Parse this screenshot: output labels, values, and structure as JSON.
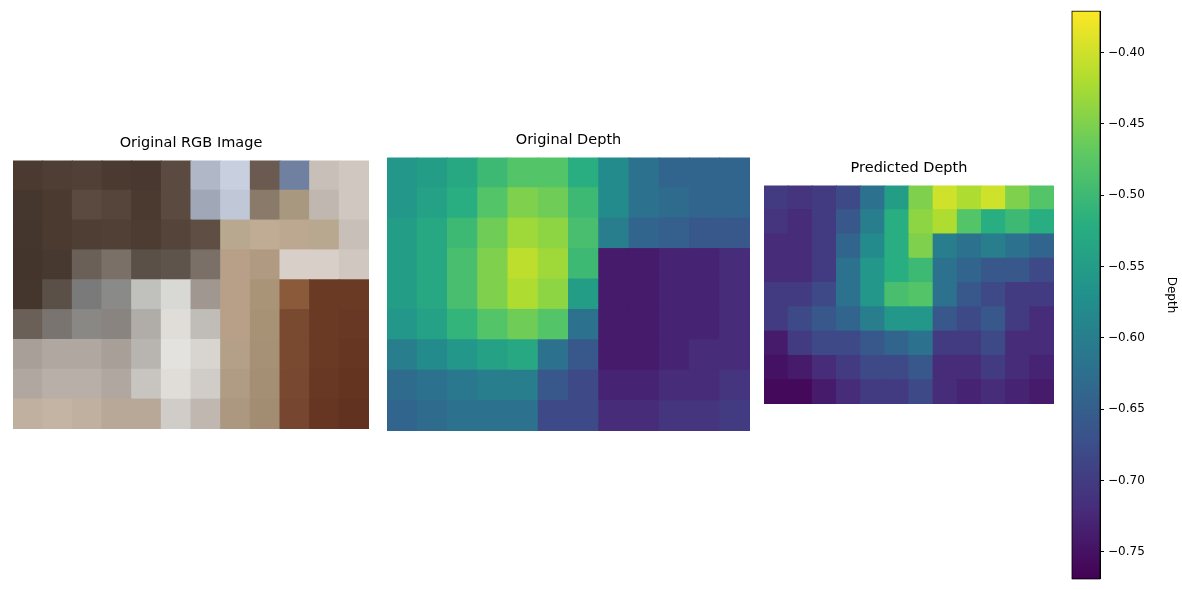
{
  "chart_data": [
    {
      "type": "image",
      "title": "Original RGB Image",
      "pixels": [
        [
          "#4a3a30",
          "#4e3e33",
          "#504035",
          "#4a3a30",
          "#483830",
          "#5a4a40",
          "#b0b8c8",
          "#c8d0e0",
          "#6a5a50",
          "#7080a0",
          "#c8c0b8",
          "#d0c8c0"
        ],
        [
          "#46372e",
          "#4a3a30",
          "#5a4a40",
          "#55453a",
          "#4a3a30",
          "#5a4a40",
          "#a0a8b8",
          "#c0c8d8",
          "#8a7a6a",
          "#a89880",
          "#c0b8b0",
          "#d0c8c0"
        ],
        [
          "#45362d",
          "#4a3a30",
          "#4e3e34",
          "#504035",
          "#4c3c32",
          "#54443a",
          "#5e4e44",
          "#b8a890",
          "#c0ac94",
          "#bca890",
          "#b8a890",
          "#c8c0b8"
        ],
        [
          "#44352c",
          "#483930",
          "#6a6058",
          "#7a7068",
          "#5a5048",
          "#5e544c",
          "#7a7068",
          "#b8a088",
          "#b09a82",
          "#d8d0c8",
          "#d8d0c8",
          "#d0c8c0"
        ],
        [
          "#45362d",
          "#5a5048",
          "#7a7a7a",
          "#8a8a88",
          "#c0c0bc",
          "#d8d8d4",
          "#a09890",
          "#b8a088",
          "#aa9478",
          "#8a5a3a",
          "#6a3a25",
          "#6a3a25"
        ],
        [
          "#6a6058",
          "#7a7470",
          "#8a8884",
          "#8a8480",
          "#b0aca8",
          "#e0ddd8",
          "#c0bcb8",
          "#b8a088",
          "#a89276",
          "#7a4a30",
          "#6a3a25",
          "#683824"
        ],
        [
          "#a8a098",
          "#b0a8a0",
          "#b0a8a0",
          "#a8a098",
          "#b8b4b0",
          "#e4e2de",
          "#d8d4d0",
          "#b4a088",
          "#a69076",
          "#7a4a30",
          "#6a3a25",
          "#663622"
        ],
        [
          "#b0a8a0",
          "#b8b0a8",
          "#b8b0a8",
          "#b0a8a0",
          "#c8c4c0",
          "#e0ddd8",
          "#d0ccc8",
          "#b09c84",
          "#a48e74",
          "#784830",
          "#683824",
          "#643420"
        ],
        [
          "#c0b0a0",
          "#c4b4a4",
          "#c0b0a0",
          "#b8a898",
          "#b8a898",
          "#d0ccc8",
          "#c0b8b0",
          "#ac9880",
          "#a28c72",
          "#764630",
          "#663622",
          "#623220"
        ]
      ]
    },
    {
      "type": "heatmap",
      "title": "Original Depth",
      "cells": [
        [
          -0.56,
          -0.55,
          -0.53,
          -0.5,
          -0.48,
          -0.48,
          -0.52,
          -0.58,
          -0.62,
          -0.64,
          -0.64,
          -0.64
        ],
        [
          -0.56,
          -0.54,
          -0.52,
          -0.48,
          -0.45,
          -0.46,
          -0.5,
          -0.58,
          -0.62,
          -0.63,
          -0.64,
          -0.64
        ],
        [
          -0.55,
          -0.53,
          -0.5,
          -0.46,
          -0.43,
          -0.44,
          -0.49,
          -0.6,
          -0.64,
          -0.65,
          -0.66,
          -0.66
        ],
        [
          -0.55,
          -0.53,
          -0.49,
          -0.45,
          -0.41,
          -0.43,
          -0.5,
          -0.74,
          -0.74,
          -0.73,
          -0.73,
          -0.72
        ],
        [
          -0.55,
          -0.53,
          -0.49,
          -0.45,
          -0.42,
          -0.44,
          -0.55,
          -0.74,
          -0.74,
          -0.73,
          -0.73,
          -0.72
        ],
        [
          -0.56,
          -0.54,
          -0.51,
          -0.48,
          -0.46,
          -0.48,
          -0.62,
          -0.74,
          -0.74,
          -0.73,
          -0.73,
          -0.72
        ],
        [
          -0.6,
          -0.58,
          -0.56,
          -0.54,
          -0.53,
          -0.62,
          -0.66,
          -0.74,
          -0.74,
          -0.73,
          -0.72,
          -0.72
        ],
        [
          -0.63,
          -0.62,
          -0.61,
          -0.6,
          -0.6,
          -0.66,
          -0.68,
          -0.73,
          -0.73,
          -0.72,
          -0.72,
          -0.71
        ],
        [
          -0.64,
          -0.63,
          -0.62,
          -0.62,
          -0.62,
          -0.68,
          -0.68,
          -0.72,
          -0.72,
          -0.71,
          -0.71,
          -0.7
        ]
      ]
    },
    {
      "type": "heatmap",
      "title": "Predicted Depth",
      "cells": [
        [
          -0.7,
          -0.71,
          -0.7,
          -0.68,
          -0.62,
          -0.55,
          -0.45,
          -0.4,
          -0.42,
          -0.4,
          -0.45,
          -0.48
        ],
        [
          -0.71,
          -0.72,
          -0.7,
          -0.66,
          -0.6,
          -0.52,
          -0.44,
          -0.42,
          -0.48,
          -0.52,
          -0.5,
          -0.52
        ],
        [
          -0.72,
          -0.72,
          -0.7,
          -0.64,
          -0.58,
          -0.52,
          -0.45,
          -0.6,
          -0.62,
          -0.6,
          -0.62,
          -0.64
        ],
        [
          -0.72,
          -0.72,
          -0.7,
          -0.62,
          -0.56,
          -0.52,
          -0.5,
          -0.62,
          -0.64,
          -0.66,
          -0.66,
          -0.68
        ],
        [
          -0.7,
          -0.7,
          -0.68,
          -0.62,
          -0.56,
          -0.49,
          -0.48,
          -0.62,
          -0.66,
          -0.68,
          -0.7,
          -0.7
        ],
        [
          -0.7,
          -0.68,
          -0.66,
          -0.64,
          -0.6,
          -0.56,
          -0.56,
          -0.66,
          -0.68,
          -0.66,
          -0.7,
          -0.72
        ],
        [
          -0.74,
          -0.7,
          -0.68,
          -0.68,
          -0.66,
          -0.64,
          -0.62,
          -0.7,
          -0.7,
          -0.68,
          -0.72,
          -0.72
        ],
        [
          -0.75,
          -0.74,
          -0.72,
          -0.7,
          -0.68,
          -0.68,
          -0.66,
          -0.72,
          -0.72,
          -0.7,
          -0.72,
          -0.73
        ],
        [
          -0.76,
          -0.76,
          -0.74,
          -0.72,
          -0.7,
          -0.7,
          -0.68,
          -0.72,
          -0.73,
          -0.72,
          -0.73,
          -0.74
        ]
      ],
      "colorbar": {
        "label": "Depth",
        "range": [
          -0.769,
          -0.371
        ],
        "ticks": [
          {
            "value": -0.75,
            "label": "−0.75"
          },
          {
            "value": -0.7,
            "label": "−0.70"
          },
          {
            "value": -0.65,
            "label": "−0.65"
          },
          {
            "value": -0.6,
            "label": "−0.60"
          },
          {
            "value": -0.55,
            "label": "−0.55"
          },
          {
            "value": -0.5,
            "label": "−0.50"
          },
          {
            "value": -0.45,
            "label": "−0.45"
          },
          {
            "value": -0.4,
            "label": "−0.40"
          }
        ]
      }
    }
  ]
}
